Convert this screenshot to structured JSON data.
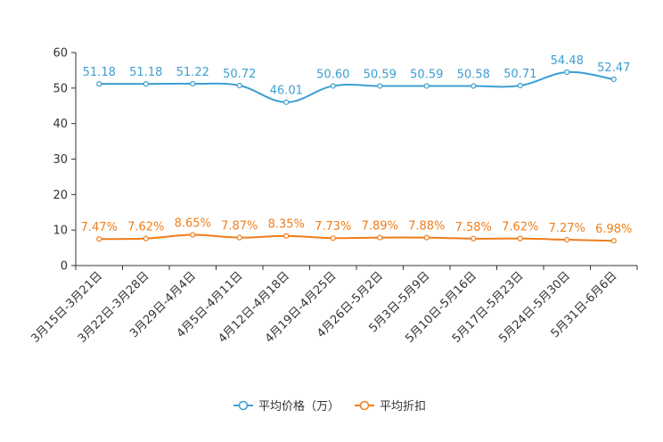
{
  "chart_data": {
    "type": "line",
    "categories": [
      "3月15日-3月21日",
      "3月22日-3月28日",
      "3月29日-4月4日",
      "4月5日-4月11日",
      "4月12日-4月18日",
      "4月19日-4月25日",
      "4月26日-5月2日",
      "5月3日-5月9日",
      "5月10日-5月16日",
      "5月17日-5月23日",
      "5月24日-5月30日",
      "5月31日-6月6日"
    ],
    "yticks": [
      "0",
      "10",
      "20",
      "30",
      "40",
      "50",
      "60"
    ],
    "ylim": [
      0,
      60
    ],
    "series": [
      {
        "name": "平均价格（万）",
        "color": "#3c9fd1",
        "values": [
          51.18,
          51.18,
          51.22,
          50.72,
          46.01,
          50.6,
          50.59,
          50.59,
          50.58,
          50.71,
          54.48,
          52.47
        ],
        "labels": [
          "51.18",
          "51.18",
          "51.22",
          "50.72",
          "46.01",
          "50.60",
          "50.59",
          "50.59",
          "50.58",
          "50.71",
          "54.48",
          "52.47"
        ]
      },
      {
        "name": "平均折扣",
        "color": "#f07d1a",
        "values": [
          7.47,
          7.62,
          8.65,
          7.87,
          8.35,
          7.73,
          7.89,
          7.88,
          7.58,
          7.62,
          7.27,
          6.98
        ],
        "labels": [
          "7.47%",
          "7.62%",
          "8.65%",
          "7.87%",
          "8.35%",
          "7.73%",
          "7.89%",
          "7.88%",
          "7.58%",
          "7.62%",
          "7.27%",
          "6.98%"
        ]
      }
    ],
    "legend": "bottom-center"
  }
}
